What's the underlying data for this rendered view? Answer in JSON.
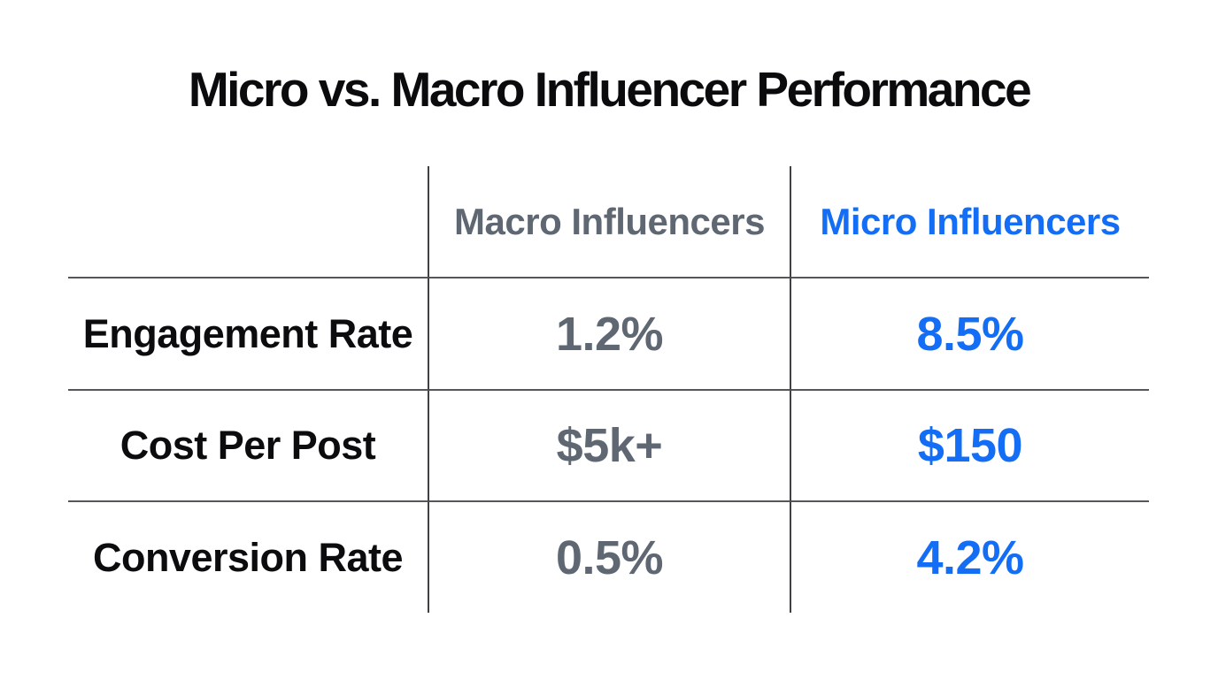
{
  "title": "Micro vs. Macro Influencer Performance",
  "colors": {
    "background": "#FFFFFF",
    "title_text": "#0B0B0D",
    "row_label_text": "#0C0C0E",
    "macro_gray": "#5F6773",
    "micro_blue": "#146EF5",
    "horizontal_rule": "#55565A",
    "vertical_rule": "#3F4145"
  },
  "table": {
    "columns": [
      {
        "label": ""
      },
      {
        "label": "Macro Influencers"
      },
      {
        "label": "Micro Influencers"
      }
    ],
    "rows": [
      {
        "label": "Engagement Rate",
        "macro": "1.2%",
        "micro": "8.5%"
      },
      {
        "label": "Cost Per Post",
        "macro": "$5k+",
        "micro": "$150"
      },
      {
        "label": "Conversion Rate",
        "macro": "0.5%",
        "micro": "4.2%"
      }
    ]
  },
  "chart_data": {
    "type": "table",
    "title": "Micro vs. Macro Influencer Performance",
    "columns": [
      "",
      "Macro Influencers",
      "Micro Influencers"
    ],
    "rows": [
      [
        "Engagement Rate",
        "1.2%",
        "8.5%"
      ],
      [
        "Cost Per Post",
        "$5k+",
        "$150"
      ],
      [
        "Conversion Rate",
        "0.5%",
        "4.2%"
      ]
    ],
    "series": [
      {
        "name": "Macro Influencers",
        "engagement_rate_pct": 1.2,
        "cost_per_post": "$5k+",
        "conversion_rate_pct": 0.5
      },
      {
        "name": "Micro Influencers",
        "engagement_rate_pct": 8.5,
        "cost_per_post": "$150",
        "conversion_rate_pct": 4.2
      }
    ],
    "layout": {
      "legend": "none",
      "grid": "inner rules only, no outer border"
    }
  }
}
